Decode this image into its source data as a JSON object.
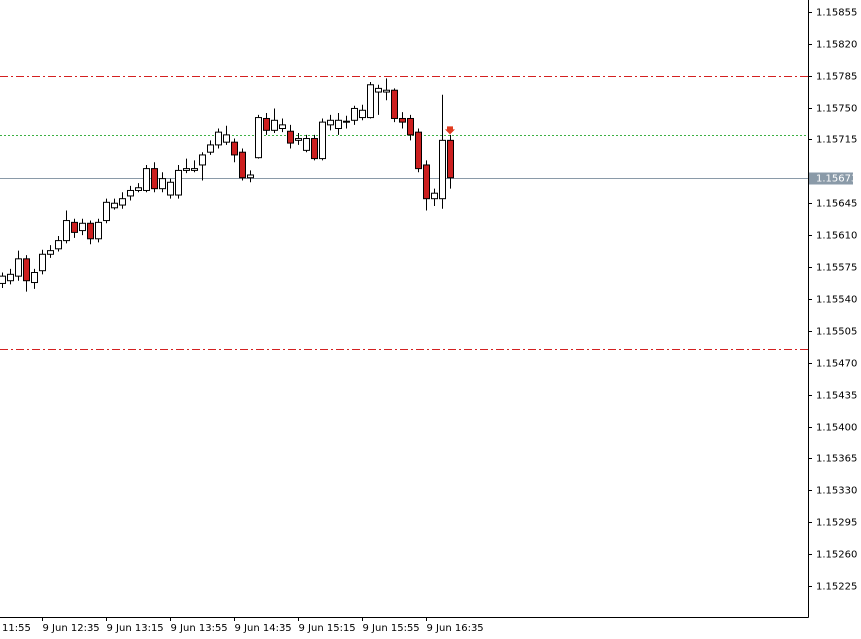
{
  "chart_data": {
    "type": "candlestick",
    "categories": [
      null,
      null,
      null,
      null,
      null,
      "9 Jun 12:35",
      null,
      null,
      null,
      null,
      null,
      null,
      null,
      "9 Jun 13:15",
      null,
      null,
      null,
      null,
      null,
      null,
      null,
      "9 Jun 13:55",
      null,
      null,
      null,
      null,
      null,
      null,
      null,
      "9 Jun 14:35",
      null,
      null,
      null,
      null,
      null,
      null,
      null,
      "9 Jun 15:15",
      null,
      null,
      null,
      null,
      null,
      null,
      null,
      "9 Jun 15:55",
      null,
      null,
      null,
      null,
      null,
      null,
      null,
      "9 Jun 16:35",
      null,
      null,
      null
    ],
    "cut_x_label": "11:55",
    "open": [
      1.15557,
      1.1556,
      1.15565,
      1.15584,
      1.15558,
      1.15571,
      1.15589,
      1.15595,
      1.15604,
      1.15624,
      1.15615,
      1.15623,
      1.15606,
      1.15626,
      1.1564,
      1.15643,
      1.15653,
      1.15659,
      1.15659,
      1.15683,
      1.15661,
      1.15654,
      1.15654,
      1.15681,
      1.15681,
      1.15687,
      1.15701,
      1.15709,
      1.15712,
      1.15712,
      1.15701,
      1.15673,
      1.15695,
      1.15738,
      1.15725,
      1.15727,
      1.15724,
      1.15714,
      1.15703,
      1.15716,
      1.15694,
      1.15731,
      1.15727,
      1.15734,
      1.15736,
      1.15739,
      1.15739,
      1.15767,
      1.15767,
      1.15769,
      1.15738,
      1.15738,
      1.15723,
      1.15687,
      1.1565,
      1.1565,
      1.15714
    ],
    "high": [
      1.15569,
      1.15573,
      1.15593,
      1.15588,
      1.15573,
      1.15594,
      1.15599,
      1.15609,
      1.15637,
      1.15628,
      1.15628,
      1.15626,
      1.15628,
      1.1565,
      1.1565,
      1.15657,
      1.15664,
      1.15667,
      1.15687,
      1.1569,
      1.15679,
      1.15672,
      1.15687,
      1.15694,
      1.15692,
      1.15701,
      1.15714,
      1.15727,
      1.1573,
      1.15716,
      1.15705,
      1.15681,
      1.15742,
      1.15744,
      1.15749,
      1.15738,
      1.15731,
      1.15722,
      1.1572,
      1.1572,
      1.15738,
      1.15742,
      1.15744,
      1.15741,
      1.15752,
      1.15753,
      1.15778,
      1.15775,
      1.15782,
      1.15771,
      1.15745,
      1.15742,
      1.15727,
      1.15692,
      1.15661,
      1.15764,
      1.1572
    ],
    "low": [
      1.15552,
      1.15556,
      1.1556,
      1.15548,
      1.15551,
      1.15567,
      1.15585,
      1.15592,
      1.15601,
      1.15607,
      1.1561,
      1.156,
      1.15602,
      1.15623,
      1.15638,
      1.15639,
      1.15648,
      1.15657,
      1.15657,
      1.15657,
      1.15657,
      1.1565,
      1.1565,
      1.15678,
      1.15679,
      1.1567,
      1.15698,
      1.15705,
      1.15709,
      1.1569,
      1.1567,
      1.15668,
      1.15694,
      1.1572,
      1.15722,
      1.15723,
      1.15705,
      1.15709,
      1.15701,
      1.15692,
      1.15692,
      1.15725,
      1.1572,
      1.15727,
      1.15731,
      1.15736,
      1.15738,
      1.15742,
      1.15758,
      1.15734,
      1.15727,
      1.15714,
      1.15679,
      1.15637,
      1.15642,
      1.15639,
      1.15661
    ],
    "close": [
      1.15565,
      1.15567,
      1.15584,
      1.1556,
      1.15569,
      1.15589,
      1.15593,
      1.15604,
      1.15626,
      1.15613,
      1.15623,
      1.15606,
      1.15624,
      1.15646,
      1.15645,
      1.1565,
      1.15659,
      1.15662,
      1.15683,
      1.15661,
      1.15672,
      1.15668,
      1.15681,
      1.15683,
      1.15683,
      1.15698,
      1.15709,
      1.15723,
      1.1572,
      1.15698,
      1.15673,
      1.15676,
      1.15739,
      1.15725,
      1.15736,
      1.15731,
      1.15711,
      1.15716,
      1.15716,
      1.15694,
      1.15734,
      1.15736,
      1.15736,
      1.15735,
      1.15749,
      1.15747,
      1.15775,
      1.15771,
      1.15769,
      1.15738,
      1.15734,
      1.1572,
      1.15683,
      1.1565,
      1.15656,
      1.15714,
      1.15673
    ],
    "up_color": "#ffffff",
    "down_color": "#cc1f1f",
    "ylim": [
      1.15191,
      1.15868
    ],
    "xlim": [
      -0.25,
      100.75
    ],
    "yticks": [
      1.15855,
      {
        "value": 1.1582,
        "label": "1.15820"
      },
      1.15785,
      {
        "value": 1.1575,
        "label": "1.15750"
      },
      1.15715,
      1.15645,
      {
        "value": 1.1561,
        "label": "1.15610"
      },
      1.15575,
      {
        "value": 1.1554,
        "label": "1.15540"
      },
      1.15505,
      {
        "value": 1.1547,
        "label": "1.15470"
      },
      1.15435,
      {
        "value": 1.154,
        "label": "1.15400"
      },
      1.15365,
      {
        "value": 1.1533,
        "label": "1.15330"
      },
      1.15295,
      {
        "value": 1.1526,
        "label": "1.15260"
      },
      1.15225
    ],
    "levels": [
      {
        "value": 1.15785,
        "color": "#d42020",
        "style": "dashdot"
      },
      {
        "value": 1.15485,
        "color": "#d42020",
        "style": "dashdot"
      },
      {
        "value": 1.1572,
        "color": "#3cb043",
        "style": "dotted"
      }
    ],
    "current_price": 1.15673,
    "current_price_color": "#8a9aa8",
    "signal_arrow": 1.15725
  }
}
